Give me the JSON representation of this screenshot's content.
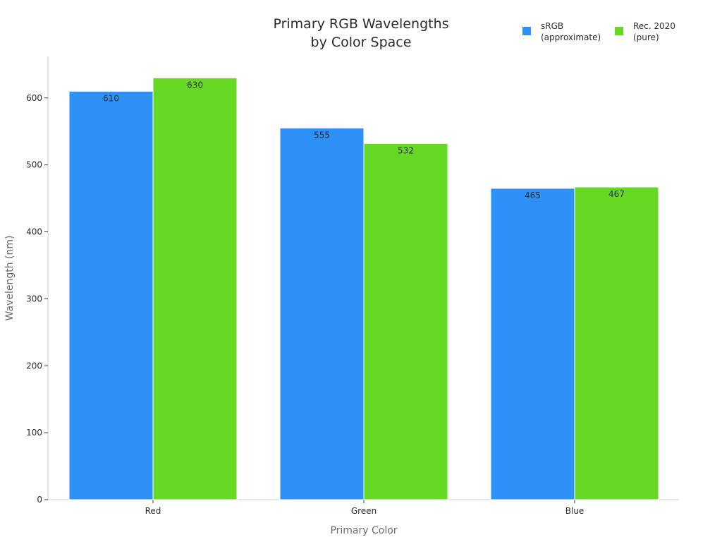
{
  "chart_data": {
    "type": "bar",
    "title": [
      "Primary RGB Wavelengths",
      "by Color Space"
    ],
    "xlabel": "Primary Color",
    "ylabel": "Wavelength (nm)",
    "categories": [
      "Red",
      "Green",
      "Blue"
    ],
    "series": [
      {
        "name": [
          "sRGB",
          "(approximate)"
        ],
        "values": [
          610,
          555,
          465
        ],
        "color": "#2e91f8"
      },
      {
        "name": [
          "Rec. 2020",
          "(pure)"
        ],
        "values": [
          630,
          532,
          467
        ],
        "color": "#66d925"
      }
    ],
    "ylim": [
      0,
      662
    ],
    "yticks": [
      0,
      100,
      200,
      300,
      400,
      500,
      600
    ],
    "grid": false,
    "legend_position": "top-right"
  }
}
